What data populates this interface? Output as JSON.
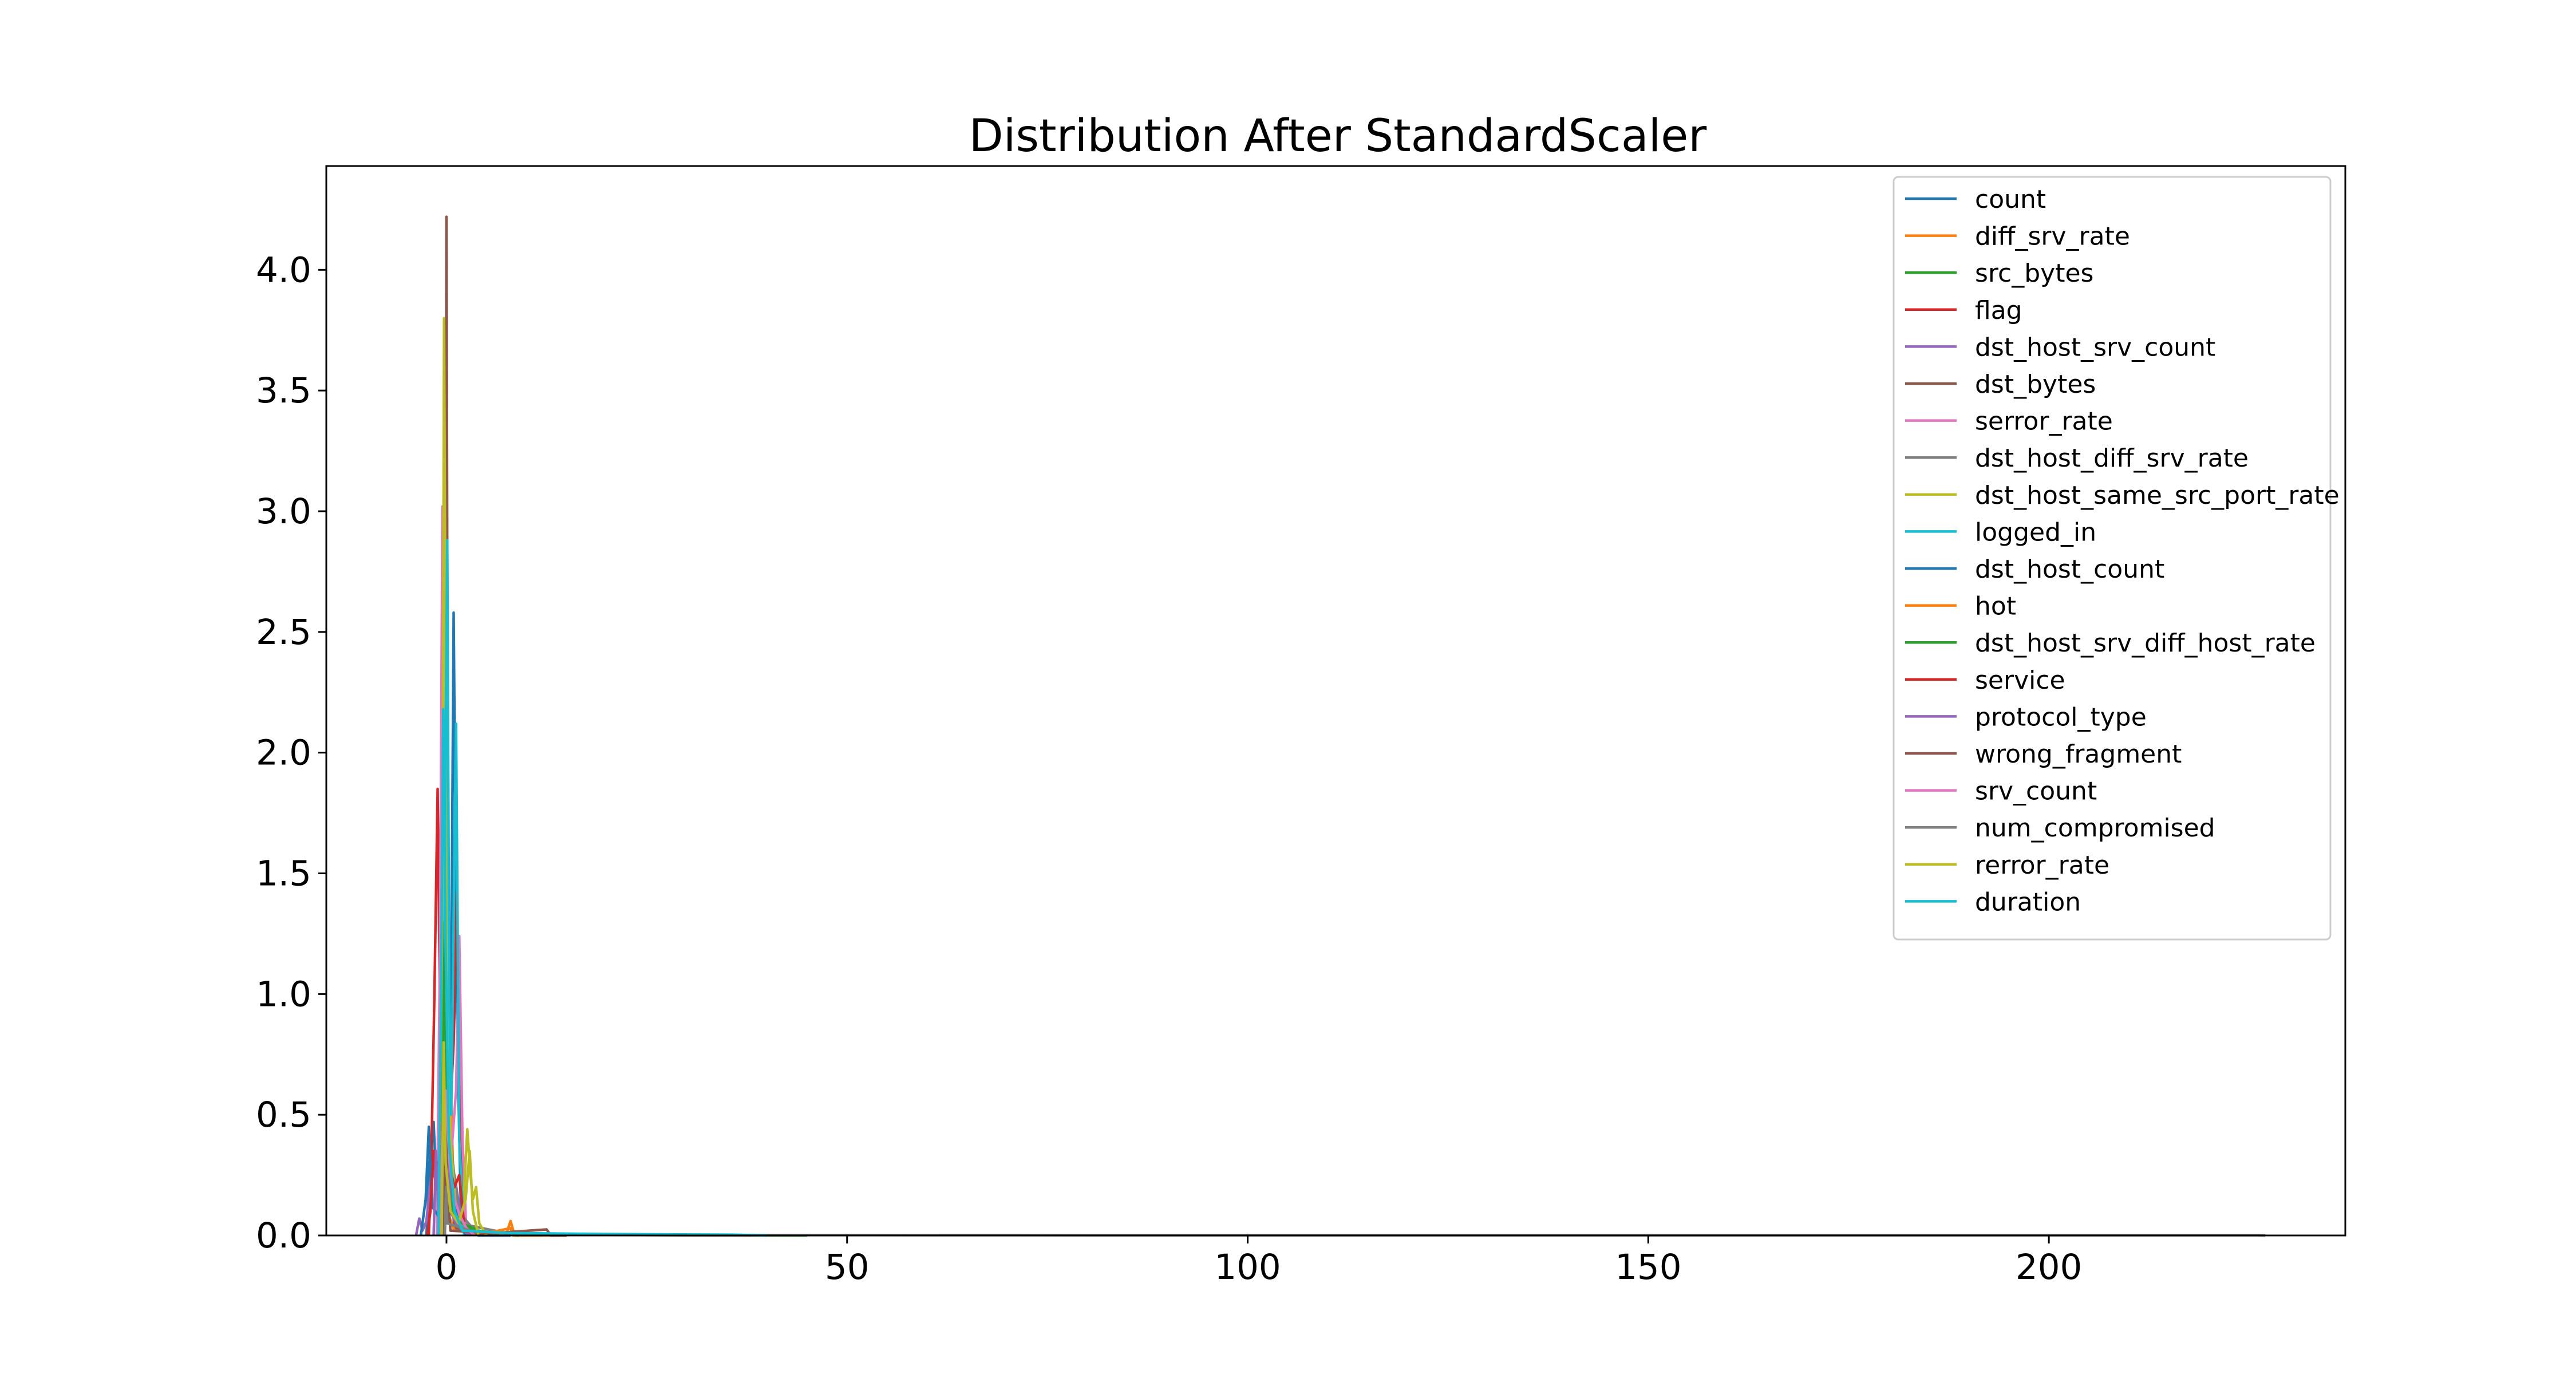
{
  "chart_data": {
    "type": "line",
    "title": "Distribution After StandardScaler",
    "xlabel": "",
    "ylabel": "",
    "xlim": [
      -15,
      237
    ],
    "ylim": [
      0,
      4.43
    ],
    "x_ticks": [
      0,
      50,
      100,
      150,
      200
    ],
    "y_ticks": [
      0.0,
      0.5,
      1.0,
      1.5,
      2.0,
      2.5,
      3.0,
      3.5,
      4.0
    ],
    "x_tick_labels": [
      "0",
      "50",
      "100",
      "150",
      "200"
    ],
    "y_tick_labels": [
      "0.0",
      "0.5",
      "1.0",
      "1.5",
      "2.0",
      "2.5",
      "3.0",
      "3.5",
      "4.0"
    ],
    "grid": false,
    "legend_position": "top-right",
    "series": [
      {
        "name": "count",
        "color": "#1f77b4",
        "points": [
          [
            -2.5,
            0
          ],
          [
            -2.1,
            0.3
          ],
          [
            -1.6,
            0.47
          ],
          [
            -1.2,
            0.15
          ],
          [
            -0.6,
            0.05
          ],
          [
            0.0,
            0.1
          ],
          [
            0.5,
            0.6
          ],
          [
            0.9,
            2.58
          ],
          [
            1.3,
            0.9
          ],
          [
            1.8,
            0.1
          ],
          [
            2.5,
            0.02
          ],
          [
            4,
            0
          ],
          [
            8,
            0
          ]
        ]
      },
      {
        "name": "diff_srv_rate",
        "color": "#ff7f0e",
        "points": [
          [
            -1.2,
            0
          ],
          [
            -0.9,
            0.4
          ],
          [
            -0.5,
            0.2
          ],
          [
            0,
            0.3
          ],
          [
            0.4,
            0.8
          ],
          [
            0.8,
            0.3
          ],
          [
            1.5,
            0.05
          ],
          [
            3,
            0.02
          ],
          [
            7.5,
            0.01
          ],
          [
            8,
            0.06
          ],
          [
            8.5,
            0
          ],
          [
            12,
            0
          ]
        ]
      },
      {
        "name": "src_bytes",
        "color": "#2ca02c",
        "points": [
          [
            -0.5,
            0
          ],
          [
            -0.1,
            0.9
          ],
          [
            0.1,
            1.7
          ],
          [
            0.4,
            0.4
          ],
          [
            1.2,
            0.04
          ],
          [
            5,
            0.01
          ],
          [
            15,
            0.003
          ],
          [
            30,
            0.001
          ],
          [
            45,
            0
          ]
        ]
      },
      {
        "name": "flag",
        "color": "#d62728",
        "points": [
          [
            -2.2,
            0
          ],
          [
            -1.9,
            0.3
          ],
          [
            -1.5,
            1.0
          ],
          [
            -1.1,
            1.85
          ],
          [
            -0.7,
            0.6
          ],
          [
            0,
            0.2
          ],
          [
            0.9,
            0.8
          ],
          [
            1.3,
            1.42
          ],
          [
            1.7,
            0.5
          ],
          [
            2.2,
            0.05
          ],
          [
            3,
            0
          ]
        ]
      },
      {
        "name": "dst_host_srv_count",
        "color": "#9467bd",
        "points": [
          [
            -3.8,
            0
          ],
          [
            -3.4,
            0.07
          ],
          [
            -3.0,
            0.02
          ],
          [
            -2.5,
            0.06
          ],
          [
            -1.8,
            0.3
          ],
          [
            -1.2,
            0.2
          ],
          [
            -0.4,
            0.1
          ],
          [
            0.3,
            0.15
          ],
          [
            1,
            0.25
          ],
          [
            1.6,
            0.12
          ],
          [
            2.5,
            0.02
          ],
          [
            4,
            0
          ]
        ]
      },
      {
        "name": "dst_bytes",
        "color": "#8c564b",
        "points": [
          [
            -0.25,
            0
          ],
          [
            -0.1,
            2.5
          ],
          [
            0.0,
            4.22
          ],
          [
            0.1,
            2.8
          ],
          [
            0.3,
            0.3
          ],
          [
            1,
            0.03
          ],
          [
            3,
            0.01
          ],
          [
            10,
            0.005
          ],
          [
            20,
            0.002
          ],
          [
            34,
            0.001
          ],
          [
            40,
            0
          ]
        ]
      },
      {
        "name": "serror_rate",
        "color": "#e377c2",
        "points": [
          [
            -1.2,
            0
          ],
          [
            -0.8,
            1.2
          ],
          [
            -0.5,
            3.02
          ],
          [
            -0.2,
            1.1
          ],
          [
            0.3,
            0.2
          ],
          [
            1.2,
            0.6
          ],
          [
            1.6,
            1.24
          ],
          [
            2.0,
            0.4
          ],
          [
            2.5,
            0
          ]
        ]
      },
      {
        "name": "dst_host_diff_srv_rate",
        "color": "#7f7f7f",
        "points": [
          [
            -0.8,
            0
          ],
          [
            -0.5,
            0.4
          ],
          [
            -0.2,
            0.8
          ],
          [
            0.2,
            0.5
          ],
          [
            0.8,
            0.3
          ],
          [
            1.5,
            0.1
          ],
          [
            3,
            0.04
          ],
          [
            6,
            0.02
          ],
          [
            9,
            0
          ]
        ]
      },
      {
        "name": "dst_host_same_src_port_rate",
        "color": "#bcbd22",
        "points": [
          [
            -0.6,
            0
          ],
          [
            -0.3,
            3.8
          ],
          [
            0.0,
            1.5
          ],
          [
            0.5,
            0.4
          ],
          [
            1.2,
            0.1
          ],
          [
            2.0,
            0.05
          ],
          [
            2.6,
            0.44
          ],
          [
            3.0,
            0.25
          ],
          [
            3.3,
            0.15
          ],
          [
            3.7,
            0.2
          ],
          [
            4.1,
            0.05
          ],
          [
            5,
            0
          ]
        ]
      },
      {
        "name": "logged_in",
        "color": "#17becf",
        "points": [
          [
            -0.4,
            0
          ],
          [
            -0.15,
            1.8
          ],
          [
            0.1,
            2.88
          ],
          [
            0.35,
            1.0
          ],
          [
            0.6,
            0.5
          ],
          [
            1.2,
            2.12
          ],
          [
            1.6,
            0.4
          ],
          [
            2.2,
            0
          ]
        ]
      },
      {
        "name": "dst_host_count",
        "color": "#1f77b4",
        "points": [
          [
            -3.2,
            0
          ],
          [
            -2.6,
            0.15
          ],
          [
            -2.2,
            0.45
          ],
          [
            -1.8,
            0.12
          ],
          [
            -1.0,
            0.08
          ],
          [
            0,
            0.05
          ],
          [
            0.9,
            0.15
          ],
          [
            1.5,
            0.05
          ],
          [
            2.5,
            0
          ]
        ]
      },
      {
        "name": "hot",
        "color": "#ff7f0e",
        "points": [
          [
            -0.2,
            0
          ],
          [
            -0.05,
            0.3
          ],
          [
            0.1,
            0.1
          ],
          [
            1,
            0.02
          ],
          [
            5,
            0.01
          ],
          [
            8,
            0.03
          ],
          [
            8.3,
            0
          ],
          [
            15,
            0
          ]
        ]
      },
      {
        "name": "dst_host_srv_diff_host_rate",
        "color": "#2ca02c",
        "points": [
          [
            -0.8,
            0
          ],
          [
            -0.5,
            0.5
          ],
          [
            -0.2,
            1.3
          ],
          [
            0.1,
            0.4
          ],
          [
            0.8,
            0.1
          ],
          [
            2,
            0.05
          ],
          [
            4,
            0.02
          ],
          [
            6,
            0.01
          ],
          [
            9,
            0
          ]
        ]
      },
      {
        "name": "service",
        "color": "#d62728",
        "points": [
          [
            -2.4,
            0
          ],
          [
            -2.0,
            0.1
          ],
          [
            -1.6,
            0.35
          ],
          [
            -1.2,
            0.2
          ],
          [
            -0.4,
            0.5
          ],
          [
            0.3,
            0.3
          ],
          [
            1.0,
            0.2
          ],
          [
            1.6,
            0.25
          ],
          [
            2.2,
            0.05
          ],
          [
            3,
            0
          ]
        ]
      },
      {
        "name": "protocol_type",
        "color": "#9467bd",
        "points": [
          [
            -1.6,
            0
          ],
          [
            -1.3,
            0.35
          ],
          [
            -1.0,
            0.1
          ],
          [
            -0.5,
            0.05
          ],
          [
            0.2,
            0.4
          ],
          [
            0.5,
            0.1
          ],
          [
            1.2,
            0.05
          ],
          [
            2.0,
            0.02
          ],
          [
            3,
            0
          ]
        ]
      },
      {
        "name": "wrong_fragment",
        "color": "#8c564b",
        "points": [
          [
            -0.3,
            0
          ],
          [
            -0.1,
            0.5
          ],
          [
            0.1,
            0.2
          ],
          [
            0.5,
            0.02
          ],
          [
            6,
            0.01
          ],
          [
            12.5,
            0.025
          ],
          [
            13,
            0
          ],
          [
            15,
            0
          ]
        ]
      },
      {
        "name": "srv_count",
        "color": "#e377c2",
        "points": [
          [
            -0.9,
            0
          ],
          [
            -0.5,
            0.4
          ],
          [
            -0.1,
            0.6
          ],
          [
            0.4,
            0.3
          ],
          [
            1.0,
            0.15
          ],
          [
            1.7,
            0.08
          ],
          [
            2.5,
            0.03
          ],
          [
            3.5,
            0
          ]
        ]
      },
      {
        "name": "num_compromised",
        "color": "#7f7f7f",
        "points": [
          [
            -0.2,
            0
          ],
          [
            -0.05,
            0.2
          ],
          [
            0.1,
            0.05
          ],
          [
            3,
            0.02
          ],
          [
            8,
            0.005
          ],
          [
            30,
            0.002
          ],
          [
            80,
            0.001
          ],
          [
            150,
            0.001
          ],
          [
            226,
            0.001
          ],
          [
            227,
            0
          ]
        ]
      },
      {
        "name": "rerror_rate",
        "color": "#bcbd22",
        "points": [
          [
            -0.6,
            0
          ],
          [
            -0.35,
            0.8
          ],
          [
            -0.1,
            0.3
          ],
          [
            0.5,
            0.1
          ],
          [
            1.5,
            0.05
          ],
          [
            2.4,
            0.15
          ],
          [
            2.9,
            0.35
          ],
          [
            3.3,
            0.1
          ],
          [
            4,
            0
          ]
        ]
      },
      {
        "name": "duration",
        "color": "#17becf",
        "points": [
          [
            -1.0,
            0
          ],
          [
            -0.7,
            0.9
          ],
          [
            -0.4,
            2.18
          ],
          [
            -0.1,
            1.2
          ],
          [
            0.3,
            0.4
          ],
          [
            1.0,
            0.1
          ],
          [
            2.0,
            0.02
          ],
          [
            8,
            0.01
          ],
          [
            20,
            0.006
          ],
          [
            36,
            0.003
          ],
          [
            40,
            0
          ]
        ]
      }
    ]
  }
}
